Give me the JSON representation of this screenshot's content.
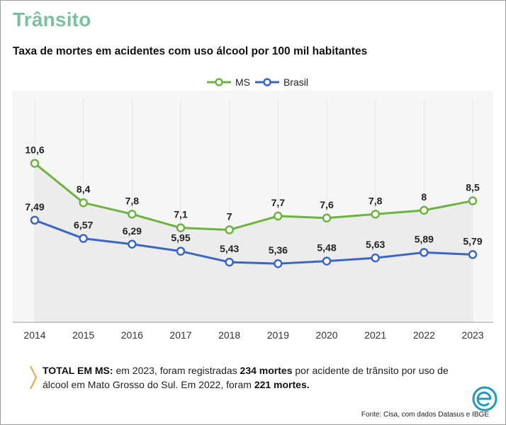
{
  "header": {
    "title": "Trânsito",
    "subtitle": "Taxa de mortes em acidentes com uso álcool por 100 mil habitantes"
  },
  "chart_data": {
    "type": "line",
    "x": [
      "2014",
      "2015",
      "2016",
      "2017",
      "2018",
      "2019",
      "2020",
      "2021",
      "2022",
      "2023"
    ],
    "series": [
      {
        "name": "MS",
        "color": "#6db33f",
        "values": [
          10.6,
          8.4,
          7.8,
          7.1,
          7,
          7.7,
          7.6,
          7.8,
          8,
          8.5
        ],
        "labels": [
          "10,6",
          "8,4",
          "7,8",
          "7,1",
          "7",
          "7,7",
          "7,6",
          "7,8",
          "8",
          "8,5"
        ]
      },
      {
        "name": "Brasil",
        "color": "#3a66c4",
        "values": [
          7.49,
          6.57,
          6.29,
          5.95,
          5.43,
          5.36,
          5.48,
          5.63,
          5.89,
          5.79
        ],
        "labels": [
          "7,49",
          "6,57",
          "6,29",
          "5,95",
          "5,43",
          "5,36",
          "5,48",
          "5,63",
          "5,89",
          "5,79"
        ]
      }
    ],
    "legend": "top-center",
    "grid": true
  },
  "note": {
    "lead": "TOTAL EM MS:",
    "text1": " em 2023, foram registradas ",
    "bold1": "234 mortes",
    "text2": " por acidente de trânsito por uso de álcool em Mato Grosso do Sul. Em 2022, foram ",
    "bold2": "221 mortes."
  },
  "source": "Fonte: Cisa, com dados Datasus e IBGE"
}
